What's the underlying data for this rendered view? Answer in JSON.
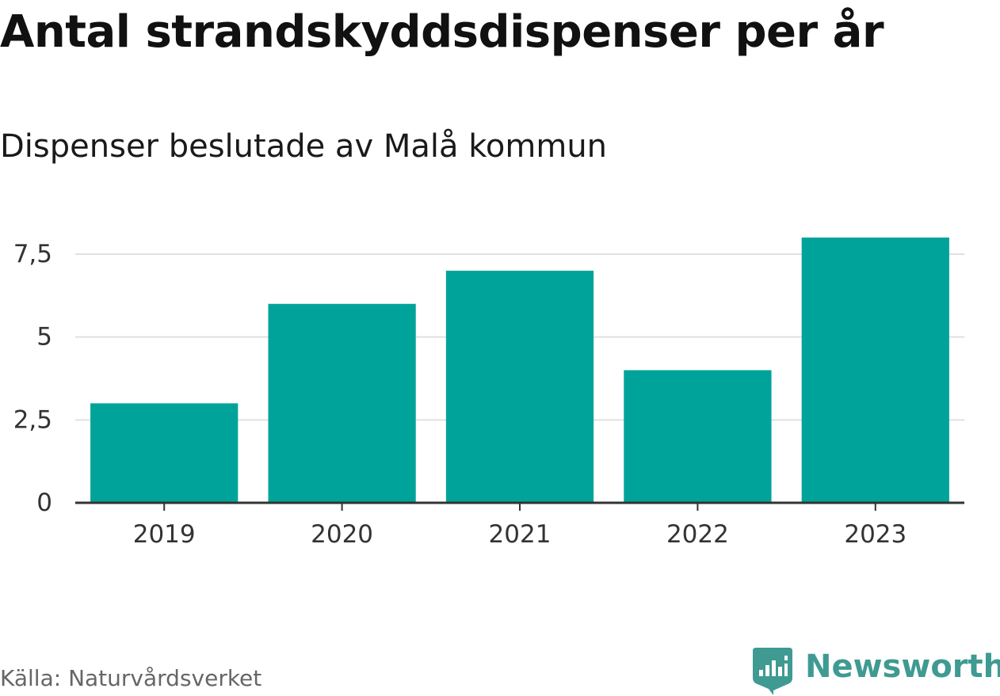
{
  "chart_data": {
    "type": "bar",
    "title": "Antal strandskyddsdispenser per år",
    "subtitle": "Dispenser beslutade av Malå kommun",
    "categories": [
      "2019",
      "2020",
      "2021",
      "2022",
      "2023"
    ],
    "values": [
      3,
      6,
      7,
      4,
      8
    ],
    "series": [
      {
        "name": "Dispenser",
        "values": [
          3,
          6,
          7,
          4,
          8
        ]
      }
    ],
    "xlabel": "",
    "ylabel": "",
    "ylim": [
      0,
      8
    ],
    "yticks": [
      0,
      2.5,
      5,
      7.5
    ],
    "ytick_labels": [
      "0",
      "2,5",
      "5",
      "7,5"
    ],
    "grid": true,
    "legend": "none",
    "bar_color": "#00a39a",
    "grid_color": "#e0e0e0",
    "axis_color": "#333333"
  },
  "footer": {
    "source": "Källa: Naturvårdsverket",
    "brand": "Newsworthy",
    "brand_icon": "newsworthy-logo-icon",
    "brand_color": "#3f9a92"
  }
}
